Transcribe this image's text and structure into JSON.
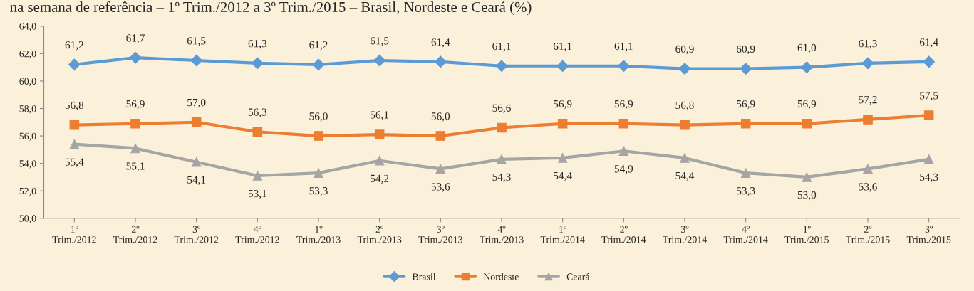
{
  "chart_data": {
    "type": "line",
    "title": "na semana de referência – 1º Trim./2012 a 3º Trim./2015 – Brasil, Nordeste e Ceará (%)",
    "categories": [
      "1º\nTrim./2012",
      "2º\nTrim./2012",
      "3º\nTrim./2012",
      "4º\nTrim./2012",
      "1º\nTrim./2013",
      "2º\nTrim./2013",
      "3º\nTrim./2013",
      "4º\nTrim./2013",
      "1º\nTrim./2014",
      "2º\nTrim./2014",
      "3º\nTrim./2014",
      "4º\nTrim./2014",
      "1º\nTrim./2015",
      "2º\nTrim./2015",
      "3º\nTrim./2015"
    ],
    "series": [
      {
        "name": "Brasil",
        "color": "#5b9bd5",
        "marker": "diamond",
        "values": [
          61.2,
          61.7,
          61.5,
          61.3,
          61.2,
          61.5,
          61.4,
          61.1,
          61.1,
          61.1,
          60.9,
          60.9,
          61.0,
          61.3,
          61.4
        ],
        "value_labels": [
          "61,2",
          "61,7",
          "61,5",
          "61,3",
          "61,2",
          "61,5",
          "61,4",
          "61,1",
          "61,1",
          "61,1",
          "60,9",
          "60,9",
          "61,0",
          "61,3",
          "61,4"
        ]
      },
      {
        "name": "Nordeste",
        "color": "#ed7d31",
        "marker": "square",
        "values": [
          56.8,
          56.9,
          57.0,
          56.3,
          56.0,
          56.1,
          56.0,
          56.6,
          56.9,
          56.9,
          56.8,
          56.9,
          56.9,
          57.2,
          57.5
        ],
        "value_labels": [
          "56,8",
          "56,9",
          "57,0",
          "56,3",
          "56,0",
          "56,1",
          "56,0",
          "56,6",
          "56,9",
          "56,9",
          "56,8",
          "56,9",
          "56,9",
          "57,2",
          "57,5"
        ]
      },
      {
        "name": "Ceará",
        "color": "#a5a5a5",
        "marker": "triangle",
        "values": [
          55.4,
          55.1,
          54.1,
          53.1,
          53.3,
          54.2,
          53.6,
          54.3,
          54.4,
          54.9,
          54.4,
          53.3,
          53.0,
          53.6,
          54.3
        ],
        "value_labels": [
          "55,4",
          "55,1",
          "54,1",
          "53,1",
          "53,3",
          "54,2",
          "53,6",
          "54,3",
          "54,4",
          "54,9",
          "54,4",
          "53,3",
          "53,0",
          "53,6",
          "54,3"
        ]
      }
    ],
    "ylim": [
      50,
      64
    ],
    "yticks": [
      {
        "value": 50,
        "label": "50,0"
      },
      {
        "value": 52,
        "label": "52,0"
      },
      {
        "value": 54,
        "label": "54,0"
      },
      {
        "value": 56,
        "label": "56,0"
      },
      {
        "value": 58,
        "label": "58,0"
      },
      {
        "value": 60,
        "label": "60,0"
      },
      {
        "value": 62,
        "label": "62,0"
      },
      {
        "value": 64,
        "label": "64,0"
      }
    ],
    "grid": false,
    "legend": "bottom",
    "line_style": "solid"
  }
}
